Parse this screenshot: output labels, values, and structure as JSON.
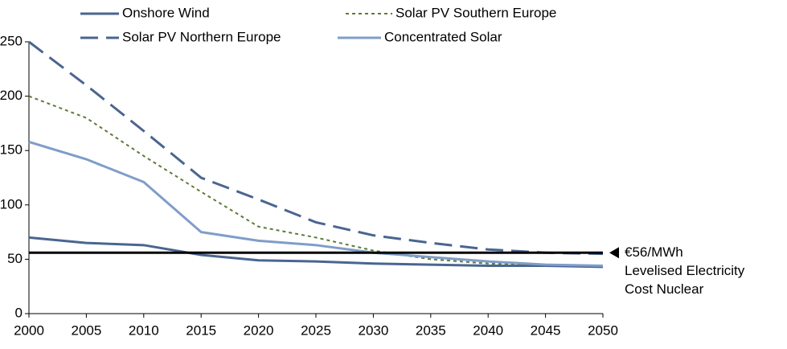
{
  "chart_data": {
    "type": "line",
    "x": [
      2000,
      2005,
      2010,
      2015,
      2020,
      2025,
      2030,
      2035,
      2040,
      2045,
      2050
    ],
    "series": [
      {
        "name": "Onshore Wind",
        "color": "#4a6590",
        "dash": "solid",
        "values": [
          70,
          65,
          63,
          54,
          49,
          48,
          46,
          45,
          44,
          44,
          43
        ]
      },
      {
        "name": "Solar PV Southern Europe",
        "color": "#5f7a3a",
        "dash": "dotted",
        "values": [
          200,
          180,
          145,
          112,
          80,
          70,
          58,
          50,
          46,
          45,
          44
        ]
      },
      {
        "name": "Solar PV Northern Europe",
        "color": "#4a6590",
        "dash": "dashed",
        "values": [
          250,
          210,
          168,
          125,
          105,
          84,
          72,
          65,
          59,
          56,
          55
        ]
      },
      {
        "name": "Concentrated Solar",
        "color": "#7f9dc9",
        "dash": "solid",
        "values": [
          158,
          142,
          121,
          75,
          67,
          63,
          56,
          52,
          48,
          45,
          44
        ]
      }
    ],
    "reference_line": {
      "value": 56,
      "color": "#000000",
      "annotation": [
        "€56/MWh",
        "Levelised Electricity",
        "Cost Nuclear"
      ]
    },
    "xlim": [
      2000,
      2050
    ],
    "xticks": [
      2000,
      2005,
      2010,
      2015,
      2020,
      2025,
      2030,
      2035,
      2040,
      2045,
      2050
    ],
    "ylim": [
      0,
      250
    ],
    "yticks": [
      0,
      50,
      100,
      150,
      200,
      250
    ],
    "grid": false
  }
}
